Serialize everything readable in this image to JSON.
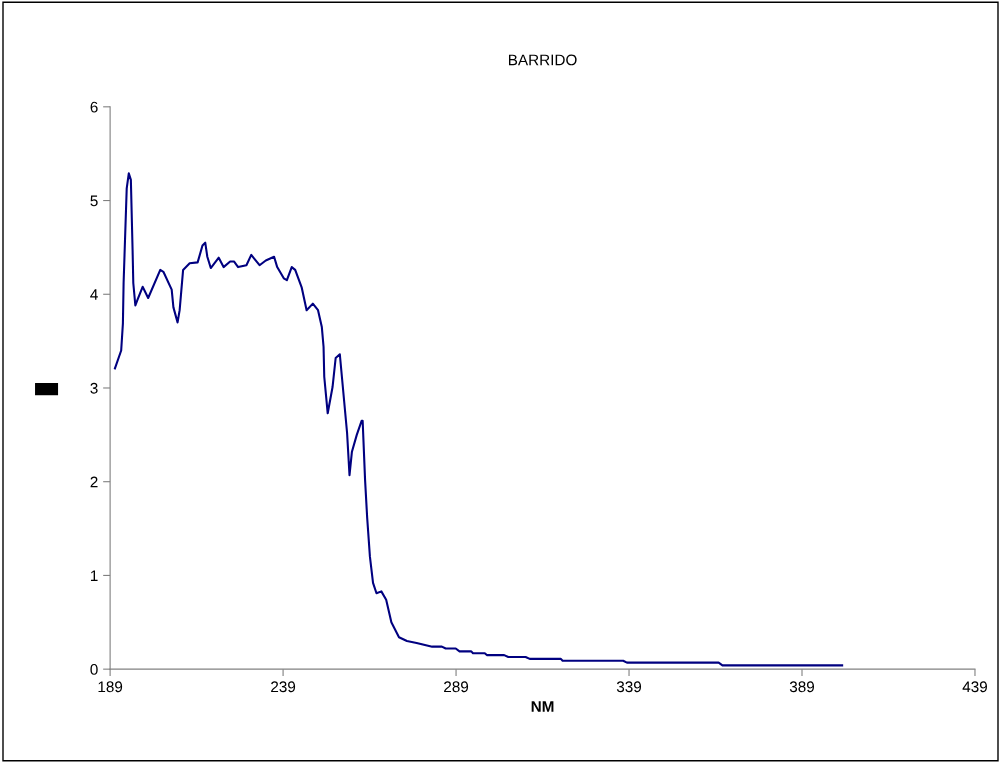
{
  "chart_data": {
    "type": "line",
    "title": "BARRIDO",
    "xlabel": "NM",
    "x": [
      190.4,
      192.2,
      192.7,
      192.9,
      193.8,
      194.4,
      195.0,
      195.5,
      195.7,
      196.3,
      196.9,
      198.4,
      198.8,
      200.0,
      203.5,
      204.4,
      206.8,
      207.3,
      208.5,
      209.1,
      210.1,
      212.0,
      214.3,
      215.7,
      216.5,
      217.1,
      218.1,
      220.4,
      221.8,
      223.7,
      224.8,
      226.0,
      228.4,
      229.8,
      232.2,
      234.0,
      236.4,
      237.3,
      239.2,
      240.1,
      241.5,
      242.5,
      244.4,
      245.8,
      247.6,
      249.1,
      250.2,
      250.7,
      250.9,
      251.9,
      253.3,
      254.2,
      255.4,
      256.1,
      257.5,
      258.2,
      258.9,
      260.3,
      261.7,
      262.0,
      262.7,
      263.3,
      264.1,
      265.0,
      266.0,
      267.4,
      268.8,
      270.3,
      272.5,
      274.8,
      277.6,
      282.1,
      284.9,
      286.0,
      288.9,
      290.0,
      293.4,
      293.9,
      297.3,
      297.9,
      302.9,
      304.1,
      309.1,
      310.3,
      319.3,
      319.8,
      337.3,
      338.4,
      364.9,
      366.0,
      400.6
    ],
    "series": [
      {
        "color": "#000080",
        "values": [
          3.21,
          3.4,
          3.69,
          4.12,
          5.13,
          5.29,
          5.22,
          4.47,
          4.12,
          3.88,
          3.94,
          4.08,
          4.05,
          3.96,
          4.26,
          4.24,
          4.05,
          3.86,
          3.7,
          3.83,
          4.26,
          4.33,
          4.34,
          4.52,
          4.55,
          4.4,
          4.28,
          4.39,
          4.29,
          4.35,
          4.35,
          4.29,
          4.31,
          4.42,
          4.31,
          4.36,
          4.4,
          4.29,
          4.17,
          4.15,
          4.29,
          4.26,
          4.07,
          3.83,
          3.9,
          3.83,
          3.65,
          3.44,
          3.12,
          2.73,
          3.01,
          3.32,
          3.36,
          3.08,
          2.52,
          2.07,
          2.32,
          2.5,
          2.65,
          2.65,
          2.02,
          1.62,
          1.2,
          0.92,
          0.81,
          0.83,
          0.74,
          0.5,
          0.34,
          0.3,
          0.28,
          0.24,
          0.24,
          0.22,
          0.22,
          0.19,
          0.19,
          0.17,
          0.17,
          0.15,
          0.15,
          0.13,
          0.13,
          0.11,
          0.11,
          0.09,
          0.09,
          0.07,
          0.07,
          0.04,
          0.04
        ]
      }
    ],
    "xlim": [
      189,
      439
    ],
    "xticks": [
      189,
      239,
      289,
      339,
      389,
      439
    ],
    "ylim": [
      0,
      6
    ],
    "yticks": [
      0,
      1,
      2,
      3,
      4,
      5,
      6
    ],
    "grid": false,
    "legend": false,
    "marker": "none",
    "line_style": "solid"
  }
}
